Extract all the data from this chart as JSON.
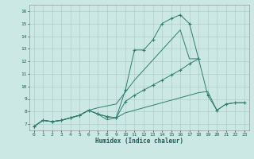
{
  "title": "",
  "xlabel": "Humidex (Indice chaleur)",
  "line_color": "#2e7d6e",
  "bg_color": "#cce8e4",
  "grid_color": "#b0cccc",
  "xlim": [
    -0.5,
    23.5
  ],
  "ylim": [
    6.5,
    16.5
  ],
  "yticks": [
    7,
    8,
    9,
    10,
    11,
    12,
    13,
    14,
    15,
    16
  ],
  "xticks": [
    0,
    1,
    2,
    3,
    4,
    5,
    6,
    7,
    8,
    9,
    10,
    11,
    12,
    13,
    14,
    15,
    16,
    17,
    18,
    19,
    20,
    21,
    22,
    23
  ],
  "line1_x": [
    0,
    1,
    2,
    3,
    4,
    5,
    6,
    7,
    8,
    9,
    10,
    11,
    12,
    13,
    14,
    15,
    16,
    17,
    18
  ],
  "line1_y": [
    6.8,
    7.3,
    7.2,
    7.3,
    7.5,
    7.7,
    8.1,
    7.8,
    7.6,
    7.5,
    9.7,
    12.9,
    12.9,
    13.7,
    15.0,
    15.4,
    15.7,
    15.0,
    12.2
  ],
  "line2_x": [
    0,
    1,
    2,
    3,
    4,
    5,
    6,
    7,
    8,
    9,
    10,
    11,
    12,
    13,
    14,
    15,
    16,
    17,
    18
  ],
  "line2_y": [
    6.8,
    7.3,
    7.2,
    7.3,
    7.5,
    7.7,
    8.1,
    8.3,
    8.45,
    8.6,
    9.55,
    10.5,
    11.3,
    12.1,
    12.9,
    13.7,
    14.5,
    12.2,
    12.2
  ],
  "line3_x": [
    0,
    1,
    2,
    3,
    4,
    5,
    6,
    7,
    8,
    9,
    10,
    11,
    12,
    13,
    14,
    15,
    16,
    17,
    18,
    19,
    20,
    21,
    22,
    23
  ],
  "line3_y": [
    6.8,
    7.3,
    7.2,
    7.3,
    7.5,
    7.7,
    8.1,
    7.8,
    7.6,
    7.5,
    8.8,
    9.3,
    9.7,
    10.1,
    10.5,
    10.9,
    11.3,
    11.8,
    12.2,
    9.3,
    8.1,
    8.6,
    8.7,
    8.7
  ],
  "line4_x": [
    0,
    1,
    2,
    3,
    4,
    5,
    6,
    7,
    8,
    9,
    10,
    11,
    12,
    13,
    14,
    15,
    16,
    17,
    18,
    19,
    20,
    21,
    22,
    23
  ],
  "line4_y": [
    6.8,
    7.3,
    7.2,
    7.3,
    7.5,
    7.7,
    8.1,
    7.8,
    7.35,
    7.5,
    7.9,
    8.1,
    8.3,
    8.5,
    8.7,
    8.9,
    9.1,
    9.3,
    9.5,
    9.6,
    8.1,
    8.6,
    8.7,
    8.7
  ]
}
